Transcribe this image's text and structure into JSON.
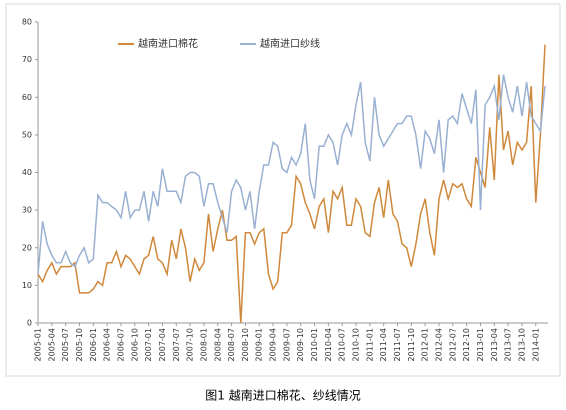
{
  "chart_data": {
    "type": "line",
    "categories": [
      "2005-01",
      null,
      null,
      "2005-04",
      null,
      null,
      "2005-07",
      null,
      null,
      "2005-10",
      null,
      null,
      "2006-01",
      null,
      null,
      "2006-04",
      null,
      null,
      "2006-07",
      null,
      null,
      "2006-10",
      null,
      null,
      "2007-01",
      null,
      null,
      "2007-04",
      null,
      null,
      "2007-07",
      null,
      null,
      "2007-10",
      null,
      null,
      "2008-01",
      null,
      null,
      "2008-04",
      null,
      null,
      "2008-07",
      null,
      null,
      "2008-10",
      null,
      null,
      "2009-01",
      null,
      null,
      "2009-04",
      null,
      null,
      "2009-07",
      null,
      null,
      "2009-10",
      null,
      null,
      "2010-01",
      null,
      null,
      "2010-04",
      null,
      null,
      "2010-07",
      null,
      null,
      "2010-10",
      null,
      null,
      "2011-01",
      null,
      null,
      "2011-04",
      null,
      null,
      "2011-07",
      null,
      null,
      "2011-10",
      null,
      null,
      "2012-01",
      null,
      null,
      "2012-04",
      null,
      null,
      "2012-07",
      null,
      null,
      "2012-10",
      null,
      null,
      "2013-01",
      null,
      null,
      "2013-04",
      null,
      null,
      "2013-07",
      null,
      null,
      "2013-10",
      null,
      null,
      "2014-01",
      null,
      null
    ],
    "series": [
      {
        "name": "越南进口棉花",
        "color": "#d0883a",
        "values": [
          13,
          11,
          14,
          16,
          13,
          15,
          15,
          15,
          16,
          8,
          8,
          8,
          9,
          11,
          10,
          16,
          16,
          19,
          15,
          18,
          17,
          15,
          13,
          17,
          18,
          23,
          17,
          16,
          13,
          22,
          17,
          25,
          20,
          11,
          17,
          14,
          16,
          29,
          19,
          25,
          30,
          22,
          22,
          23,
          0,
          24,
          24,
          21,
          24,
          25,
          13,
          9,
          11,
          24,
          24,
          26,
          39,
          37,
          32,
          29,
          25,
          31,
          33,
          24,
          35,
          33,
          36,
          26,
          26,
          33,
          31,
          24,
          23,
          32,
          36,
          28,
          38,
          29,
          27,
          21,
          20,
          15,
          21,
          29,
          33,
          24,
          18,
          33,
          38,
          33,
          37,
          36,
          37,
          33,
          31,
          44,
          40,
          36,
          52,
          38,
          66,
          46,
          51,
          42,
          48,
          46,
          48,
          63,
          32,
          50,
          74
        ]
      },
      {
        "name": "越南进口纱线",
        "color": "#99b0d2",
        "values": [
          13,
          27,
          21,
          18,
          16,
          16,
          19,
          16,
          15,
          18,
          20,
          16,
          17,
          34,
          32,
          32,
          31,
          30,
          28,
          35,
          28,
          30,
          30,
          35,
          27,
          35,
          31,
          41,
          35,
          35,
          35,
          32,
          39,
          40,
          40,
          39,
          31,
          37,
          37,
          32,
          28,
          24,
          35,
          38,
          36,
          30,
          35,
          25,
          35,
          42,
          42,
          48,
          47,
          41,
          40,
          44,
          42,
          45,
          53,
          38,
          33,
          47,
          47,
          50,
          48,
          42,
          50,
          53,
          50,
          58,
          64,
          48,
          43,
          60,
          50,
          47,
          49,
          51,
          53,
          53,
          55,
          55,
          50,
          41,
          51,
          49,
          45,
          54,
          40,
          54,
          55,
          53,
          61,
          57,
          53,
          62,
          30,
          58,
          60,
          63,
          54,
          66,
          60,
          56,
          63,
          55,
          64,
          55,
          53,
          51,
          63
        ]
      }
    ],
    "ylim": [
      0,
      80
    ],
    "yticks": [
      0,
      10,
      20,
      30,
      40,
      50,
      60,
      70,
      80
    ],
    "grid": false,
    "legend": "top",
    "caption": "图1 越南进口棉花、纱线情况"
  }
}
